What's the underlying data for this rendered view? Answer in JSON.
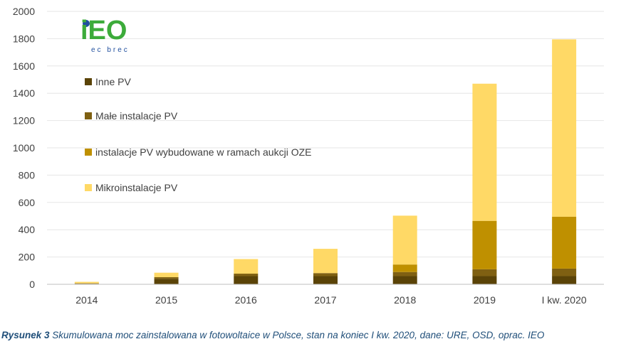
{
  "chart_data": {
    "type": "bar",
    "stacked": true,
    "categories": [
      "2014",
      "2015",
      "2016",
      "2017",
      "2018",
      "2019",
      "I kw. 2020"
    ],
    "series": [
      {
        "name": "Inne PV",
        "color": "#5a4307",
        "values": [
          4,
          40,
          60,
          60,
          60,
          60,
          60
        ]
      },
      {
        "name": "Małe instalacje PV",
        "color": "#7f6012",
        "values": [
          3,
          12,
          18,
          22,
          30,
          50,
          55
        ]
      },
      {
        "name": "instalacje PV wybudowane w ramach aukcji OZE",
        "color": "#bf9000",
        "values": [
          0,
          0,
          0,
          0,
          55,
          355,
          380
        ]
      },
      {
        "name": "Mikroinstalacje PV",
        "color": "#ffd966",
        "values": [
          11,
          33,
          107,
          178,
          358,
          1005,
          1300
        ]
      }
    ],
    "yticks": [
      "0",
      "200",
      "400",
      "600",
      "800",
      "1000",
      "1200",
      "1400",
      "1600",
      "1800",
      "2000"
    ],
    "ylim": [
      0,
      2000
    ],
    "grid": true,
    "legend_position": "top-left, inside",
    "title": "",
    "xlabel": "",
    "ylabel": ""
  },
  "logo": {
    "text": "iEO",
    "subtext": "ec brec"
  },
  "caption": {
    "lead": "Rysunek 3",
    "text": " Skumulowana moc zainstalowana w fotowoltaice w Polsce, stan na koniec I kw. 2020, dane: URE, OSD, oprac. IEO"
  },
  "colors": {
    "gridline": "#e6e6e6",
    "axis": "#bfbfbf",
    "logo_green": "#3cab3a",
    "logo_blue": "#1f4e9e",
    "caption": "#1f4e79"
  }
}
